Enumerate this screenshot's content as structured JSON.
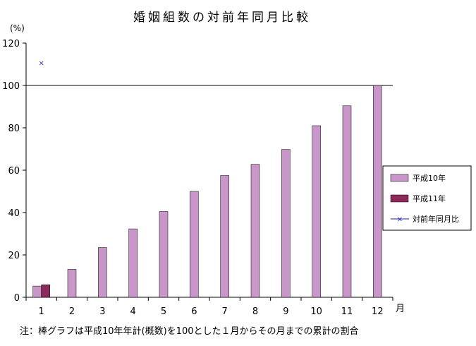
{
  "chart_data": {
    "type": "bar",
    "title": "婚姻組数の対前年同月比較",
    "ylabel": "(%)",
    "xlabel": "月",
    "ylim": [
      0,
      120
    ],
    "yticks": [
      0,
      20,
      40,
      60,
      80,
      100,
      120
    ],
    "reference_line": 100,
    "categories": [
      "1",
      "2",
      "3",
      "4",
      "5",
      "6",
      "7",
      "8",
      "9",
      "10",
      "11",
      "12"
    ],
    "series": [
      {
        "name": "平成10年",
        "type": "bar",
        "color": "#c896c8",
        "values": [
          5.3,
          13.2,
          23.5,
          32.3,
          40.5,
          50.0,
          57.5,
          62.8,
          69.8,
          81.0,
          90.4,
          100.0
        ]
      },
      {
        "name": "平成11年",
        "type": "bar",
        "color": "#8c2a5a",
        "values": [
          5.9,
          null,
          null,
          null,
          null,
          null,
          null,
          null,
          null,
          null,
          null,
          null
        ]
      },
      {
        "name": "対前年同月比",
        "type": "line",
        "marker": "x",
        "color": "#1e1eb4",
        "values": [
          110.6,
          null,
          null,
          null,
          null,
          null,
          null,
          null,
          null,
          null,
          null,
          null
        ]
      }
    ],
    "legend_position": "right",
    "grid": false
  },
  "note": "注：棒グラフは平成10年年計(概数)を100とした１月からその月までの累計の割合"
}
